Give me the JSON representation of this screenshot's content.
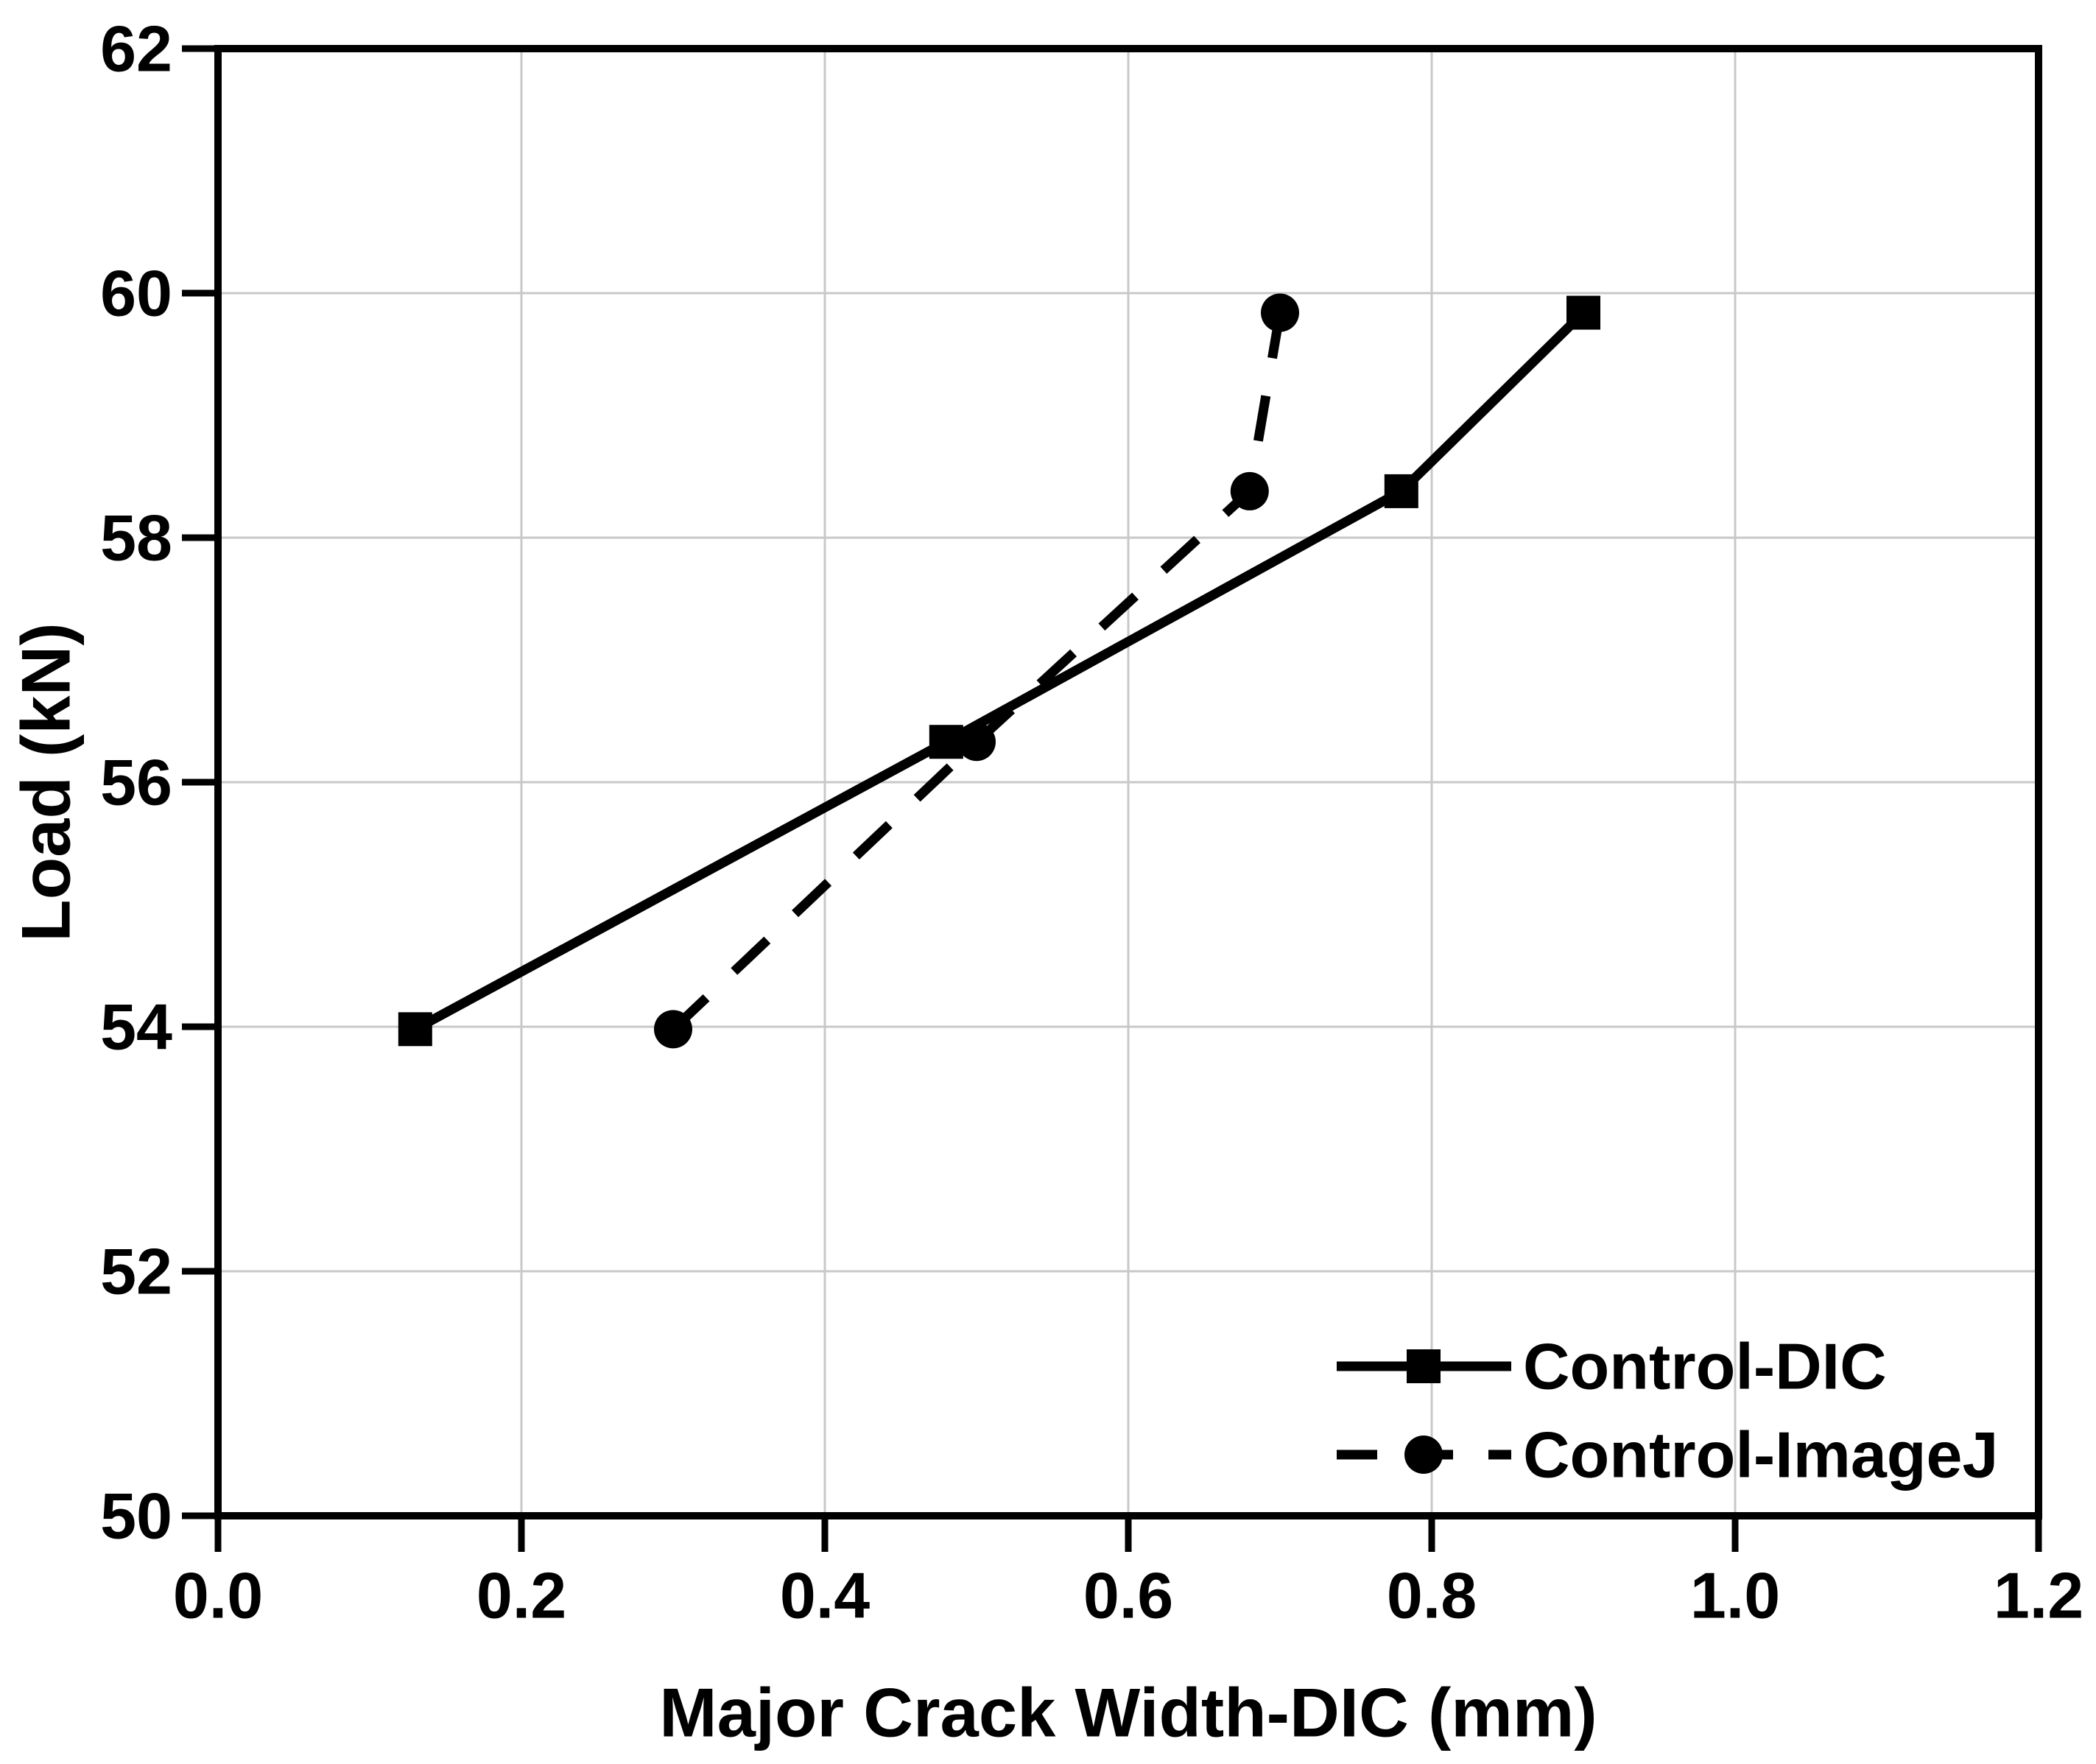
{
  "colors": {
    "background": "#ffffff",
    "axis": "#000000",
    "grid": "#c8c8c8",
    "text": "#000000",
    "series": "#000000"
  },
  "chart_data": {
    "type": "line",
    "title": "",
    "xlabel": "Major Crack Width-DIC (mm)",
    "ylabel": "Load (kN)",
    "xlim": [
      0.0,
      1.2
    ],
    "ylim": [
      50,
      62
    ],
    "xtick_values": [
      0.0,
      0.2,
      0.4,
      0.6,
      0.8,
      1.0,
      1.2
    ],
    "xtick_labels": [
      "0.0",
      "0.2",
      "0.4",
      "0.6",
      "0.8",
      "1.0",
      "1.2"
    ],
    "ytick_values": [
      50,
      52,
      54,
      56,
      58,
      60,
      62
    ],
    "ytick_labels": [
      "50",
      "52",
      "54",
      "56",
      "58",
      "60",
      "62"
    ],
    "grid": true,
    "legend_position": "lower right",
    "series": [
      {
        "name": "Control-DIC",
        "marker": "square",
        "line_style": "solid",
        "color": "#000000",
        "points": [
          [
            0.13,
            53.98
          ],
          [
            0.48,
            56.33
          ],
          [
            0.78,
            58.38
          ],
          [
            0.9,
            59.84
          ]
        ]
      },
      {
        "name": "Control-ImageJ",
        "marker": "circle",
        "line_style": "dashed",
        "color": "#000000",
        "points": [
          [
            0.3,
            53.98
          ],
          [
            0.5,
            56.33
          ],
          [
            0.68,
            58.38
          ],
          [
            0.7,
            59.84
          ]
        ]
      }
    ]
  }
}
